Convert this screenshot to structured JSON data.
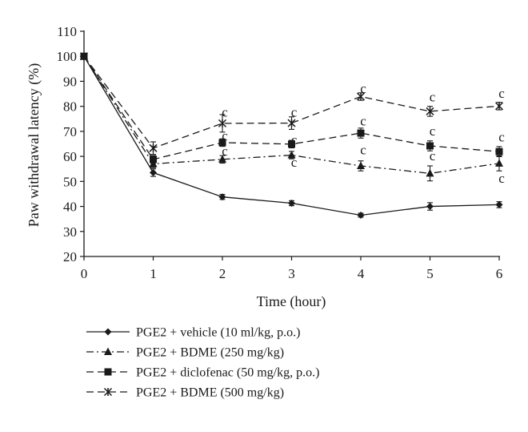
{
  "chart_data": {
    "type": "line",
    "x": [
      0,
      1,
      2,
      3,
      4,
      5,
      6
    ],
    "xlabel": "Time (hour)",
    "ylabel": "Paw withdrawal latency (%)",
    "xlim": [
      0,
      6
    ],
    "ylim": [
      20,
      110
    ],
    "xticks": [
      "0",
      "1",
      "2",
      "3",
      "4",
      "5",
      "6"
    ],
    "yticks": [
      "20",
      "30",
      "40",
      "50",
      "60",
      "70",
      "80",
      "90",
      "100",
      "110"
    ],
    "grid": false,
    "legend_position": "bottom",
    "series": [
      {
        "name": "PGE2 + vehicle (10 ml/kg, p.o.)",
        "marker": "diamond",
        "dash": "solid",
        "values": [
          100,
          53.5,
          43.8,
          41.3,
          36.5,
          40,
          40.7
        ],
        "errors": [
          0,
          1.5,
          1,
          1,
          0.8,
          1.5,
          1.2
        ]
      },
      {
        "name": "PGE2 + BDME (250 mg/kg)",
        "marker": "triangle",
        "dash": "dashdot",
        "values": [
          100,
          57,
          58.8,
          60.5,
          56.2,
          53.2,
          57.2
        ],
        "errors": [
          0,
          1.5,
          1.5,
          1.5,
          2,
          3,
          3
        ]
      },
      {
        "name": "PGE2 + diclofenac (50 mg/kg, p.o.)",
        "marker": "square",
        "dash": "dashed",
        "values": [
          100,
          58.8,
          65.5,
          64.9,
          69.3,
          64.2,
          61.9
        ],
        "errors": [
          0,
          1.5,
          1.5,
          1.5,
          2,
          2,
          2
        ]
      },
      {
        "name": "PGE2 + BDME (500 mg/kg)",
        "marker": "x",
        "dash": "dashed",
        "values": [
          100,
          63.3,
          73.2,
          73.3,
          83.9,
          78,
          80.1
        ],
        "errors": [
          0,
          2.5,
          3.5,
          2.5,
          1.5,
          2,
          1.5
        ]
      }
    ],
    "annotations": [
      {
        "text": "c",
        "x": 2,
        "y": 77.5
      },
      {
        "text": "c",
        "x": 2,
        "y": 68
      },
      {
        "text": "c",
        "x": 2,
        "y": 62
      },
      {
        "text": "c",
        "x": 3,
        "y": 77.5
      },
      {
        "text": "c",
        "x": 3,
        "y": 66.5
      },
      {
        "text": "c",
        "x": 3,
        "y": 57.5
      },
      {
        "text": "c",
        "x": 4,
        "y": 87
      },
      {
        "text": "c",
        "x": 4,
        "y": 74
      },
      {
        "text": "c",
        "x": 4,
        "y": 62.5
      },
      {
        "text": "c",
        "x": 5,
        "y": 83.5
      },
      {
        "text": "c",
        "x": 5,
        "y": 70
      },
      {
        "text": "c",
        "x": 5,
        "y": 60
      },
      {
        "text": "c",
        "x": 6,
        "y": 85
      },
      {
        "text": "c",
        "x": 6,
        "y": 67.5
      },
      {
        "text": "c",
        "x": 6,
        "y": 51
      }
    ]
  }
}
